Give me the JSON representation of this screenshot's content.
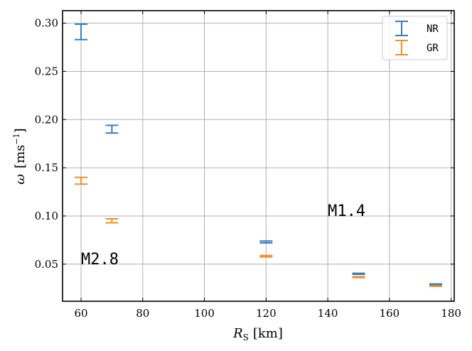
{
  "chart_data": {
    "type": "errorbar",
    "xlabel_main": "R",
    "xlabel_sub": "S",
    "xlabel_unit": "[km]",
    "ylabel_main": "ω",
    "ylabel_unit_pre": "[ms",
    "ylabel_unit_sup": "−1",
    "ylabel_unit_post": "]",
    "xlim": [
      54,
      181
    ],
    "ylim": [
      0.0115,
      0.313
    ],
    "xticks": [
      60,
      80,
      100,
      120,
      140,
      160,
      180
    ],
    "yticks": [
      0.05,
      0.1,
      0.15,
      0.2,
      0.25,
      0.3
    ],
    "xtick_labels": [
      "60",
      "80",
      "100",
      "120",
      "140",
      "160",
      "180"
    ],
    "ytick_labels": [
      "0.05",
      "0.10",
      "0.15",
      "0.20",
      "0.25",
      "0.30"
    ],
    "grid": true,
    "legend_position": "top-right",
    "series": [
      {
        "name": "NR",
        "color": "#3a7db8",
        "points": [
          {
            "x": 60,
            "low": 0.283,
            "high": 0.299
          },
          {
            "x": 70,
            "low": 0.186,
            "high": 0.194
          },
          {
            "x": 120,
            "low": 0.072,
            "high": 0.074
          },
          {
            "x": 150,
            "low": 0.0395,
            "high": 0.0405
          },
          {
            "x": 175,
            "low": 0.0285,
            "high": 0.0295
          }
        ]
      },
      {
        "name": "GR",
        "color": "#f28e2b",
        "points": [
          {
            "x": 60,
            "low": 0.133,
            "high": 0.14
          },
          {
            "x": 70,
            "low": 0.093,
            "high": 0.097
          },
          {
            "x": 120,
            "low": 0.0575,
            "high": 0.059
          },
          {
            "x": 150,
            "low": 0.036,
            "high": 0.037
          },
          {
            "x": 175,
            "low": 0.027,
            "high": 0.0275
          }
        ]
      }
    ],
    "annotations": [
      {
        "text": "M1.4",
        "x": 140,
        "y": 0.1
      },
      {
        "text": "M2.8",
        "x": 60,
        "y": 0.05
      }
    ]
  }
}
